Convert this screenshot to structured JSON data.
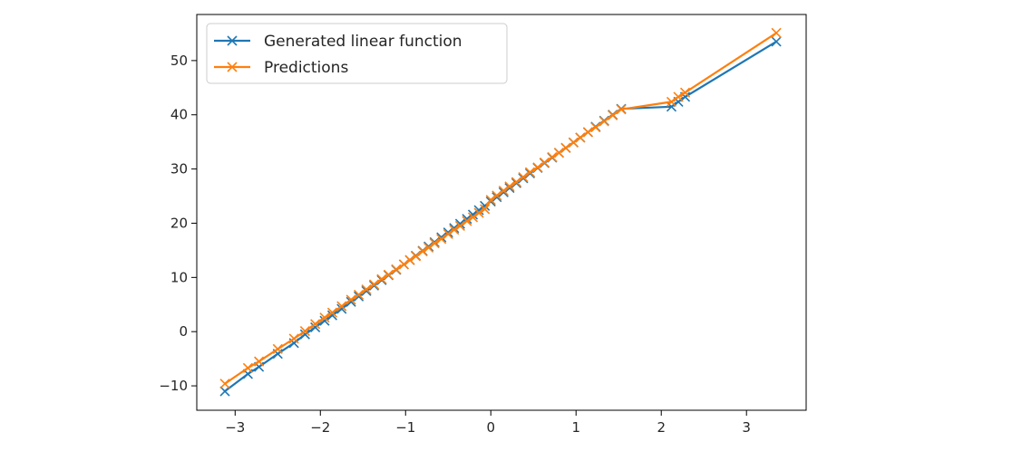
{
  "chart_data": {
    "type": "line",
    "title": "",
    "xlabel": "",
    "ylabel": "",
    "xlim": [
      -3.45,
      3.7
    ],
    "ylim": [
      -14.5,
      58.5
    ],
    "xticks": [
      -3,
      -2,
      -1,
      0,
      1,
      2,
      3
    ],
    "yticks": [
      -10,
      0,
      10,
      20,
      30,
      40,
      50
    ],
    "grid": false,
    "legend_position": "top-left",
    "marker": "x",
    "series": [
      {
        "name": "Generated linear function",
        "color": "#1f77b4",
        "x": [
          -3.12,
          -2.85,
          -2.72,
          -2.5,
          -2.31,
          -2.18,
          -2.06,
          -1.95,
          -1.86,
          -1.75,
          -1.64,
          -1.55,
          -1.46,
          -1.37,
          -1.28,
          -1.2,
          -1.11,
          -1.02,
          -0.95,
          -0.88,
          -0.8,
          -0.73,
          -0.66,
          -0.58,
          -0.5,
          -0.43,
          -0.36,
          -0.28,
          -0.21,
          -0.14,
          -0.07,
          0.0,
          0.07,
          0.15,
          0.22,
          0.3,
          0.38,
          0.46,
          0.55,
          0.63,
          0.72,
          0.8,
          0.88,
          0.97,
          1.05,
          1.14,
          1.23,
          1.33,
          1.43,
          1.53,
          2.12,
          2.2,
          2.28,
          3.35
        ],
        "y": [
          -11.0,
          -7.8,
          -6.5,
          -4.1,
          -2.1,
          -0.5,
          0.8,
          2.0,
          3.0,
          4.2,
          5.5,
          6.5,
          7.5,
          8.5,
          9.5,
          10.4,
          11.4,
          12.4,
          13.2,
          14.0,
          14.9,
          15.7,
          16.5,
          17.4,
          18.3,
          19.1,
          19.9,
          20.8,
          21.6,
          22.4,
          23.2,
          24.0,
          24.8,
          25.7,
          26.5,
          27.4,
          28.3,
          29.2,
          30.2,
          31.1,
          32.1,
          33.0,
          33.9,
          34.9,
          35.8,
          36.8,
          37.8,
          38.9,
          40.0,
          41.1,
          41.5,
          42.4,
          43.3,
          53.5
        ]
      },
      {
        "name": "Predictions",
        "color": "#ff7f0e",
        "x": [
          -3.12,
          -2.85,
          -2.72,
          -2.5,
          -2.31,
          -2.18,
          -2.06,
          -1.95,
          -1.86,
          -1.75,
          -1.64,
          -1.55,
          -1.46,
          -1.37,
          -1.28,
          -1.2,
          -1.11,
          -1.02,
          -0.95,
          -0.88,
          -0.8,
          -0.73,
          -0.66,
          -0.58,
          -0.5,
          -0.43,
          -0.36,
          -0.28,
          -0.21,
          -0.14,
          -0.07,
          0.0,
          0.07,
          0.15,
          0.22,
          0.3,
          0.38,
          0.46,
          0.55,
          0.63,
          0.72,
          0.8,
          0.88,
          0.97,
          1.05,
          1.14,
          1.23,
          1.33,
          1.43,
          1.53,
          2.12,
          2.2,
          2.28,
          3.35
        ],
        "y": [
          -9.6,
          -6.7,
          -5.5,
          -3.2,
          -1.3,
          0.1,
          1.4,
          2.6,
          3.5,
          4.7,
          5.9,
          6.8,
          7.8,
          8.7,
          9.7,
          10.5,
          11.5,
          12.4,
          13.2,
          13.9,
          14.8,
          15.5,
          16.3,
          17.1,
          18.0,
          18.8,
          19.5,
          20.4,
          21.1,
          21.9,
          22.6,
          24.3,
          25.1,
          26.0,
          26.8,
          27.6,
          28.5,
          29.4,
          30.3,
          31.2,
          32.2,
          33.0,
          33.9,
          34.9,
          35.8,
          36.8,
          37.7,
          38.8,
          39.9,
          41.0,
          42.4,
          43.3,
          44.1,
          55.1
        ]
      }
    ]
  }
}
